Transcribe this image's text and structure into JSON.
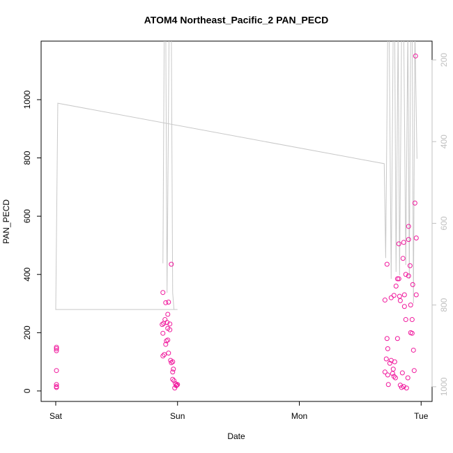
{
  "chart_data": {
    "type": "scatter",
    "title": "ATOM4 Northeast_Pacific_2 PAN_PECD",
    "xlabel": "Date",
    "ylabel": "PAN_PECD",
    "xlim": [
      -0.12,
      3.09
    ],
    "xticks": [
      {
        "value": 0,
        "label": "Sat"
      },
      {
        "value": 1,
        "label": "Sun"
      },
      {
        "value": 2,
        "label": "Mon"
      },
      {
        "value": 3,
        "label": "Tue"
      }
    ],
    "ylim": [
      -36,
      1201
    ],
    "yticks": [
      0,
      200,
      400,
      600,
      800,
      1000
    ],
    "y2lim": [
      1036,
      154
    ],
    "y2ticks": [
      200,
      400,
      600,
      800,
      1000
    ],
    "y2color": "#c0c0c0",
    "series": [
      {
        "type": "scatter",
        "color": "#f0189c",
        "x": [
          0.006,
          0.006,
          0.006,
          0.006,
          0.006,
          0.006,
          0.006,
          0.88,
          0.903,
          0.926,
          0.949,
          0.92,
          0.897,
          0.886,
          0.874,
          0.914,
          0.937,
          0.92,
          0.937,
          0.88,
          0.92,
          0.909,
          0.903,
          0.926,
          0.891,
          0.88,
          0.943,
          0.96,
          0.949,
          0.966,
          0.96,
          0.96,
          0.971,
          0.983,
          0.994,
          0.989,
          0.977,
          1.0,
          2.72,
          2.703,
          2.72,
          2.726,
          2.714,
          2.703,
          2.726,
          2.743,
          2.754,
          2.731,
          2.754,
          2.777,
          2.794,
          2.806,
          2.817,
          2.806,
          2.783,
          2.771,
          2.766,
          2.777,
          2.789,
          2.823,
          2.829,
          2.817,
          2.857,
          2.851,
          2.874,
          2.897,
          2.863,
          2.863,
          2.874,
          2.846,
          2.829,
          2.84,
          2.857,
          2.891,
          2.88,
          2.897,
          2.897,
          2.909,
          2.914,
          2.914,
          2.926,
          2.926,
          2.949,
          2.954,
          2.96,
          2.931,
          2.96,
          2.937,
          2.943
        ],
        "values": [
          150,
          145,
          138,
          70,
          22,
          15,
          12,
          338,
          303,
          305,
          435,
          263,
          245,
          232,
          228,
          235,
          230,
          215,
          210,
          198,
          175,
          172,
          160,
          130,
          125,
          120,
          105,
          100,
          97,
          75,
          65,
          40,
          35,
          25,
          20,
          18,
          10,
          22,
          435,
          312,
          180,
          145,
          110,
          65,
          55,
          95,
          105,
          22,
          320,
          328,
          360,
          385,
          385,
          180,
          100,
          75,
          60,
          50,
          45,
          325,
          310,
          505,
          510,
          455,
          400,
          395,
          330,
          290,
          245,
          62,
          20,
          12,
          15,
          45,
          10,
          565,
          520,
          430,
          295,
          200,
          198,
          245,
          645,
          1150,
          525,
          365,
          330,
          140,
          70
        ]
      },
      {
        "type": "line",
        "axis": "y2",
        "color": "#c8c8c8",
        "x": [
          0.88,
          0.891,
          0.903,
          0.914,
          0.931,
          0.949,
          0.96,
          0.971,
          1.0,
          0,
          0.017,
          2.697,
          2.709,
          2.726,
          2.737,
          2.754,
          2.771,
          2.783,
          2.794,
          2.811,
          2.823,
          2.84,
          2.857,
          2.874,
          2.891,
          2.903,
          2.914,
          2.926,
          2.937,
          2.949,
          2.966
        ],
        "values": [
          698,
          122,
          122,
          770,
          122,
          122,
          770,
          811,
          811,
          811,
          306,
          454,
          685,
          122,
          122,
          736,
          122,
          122,
          719,
          122,
          727,
          122,
          122,
          702,
          122,
          736,
          122,
          122,
          796,
          122,
          442
        ]
      }
    ]
  }
}
